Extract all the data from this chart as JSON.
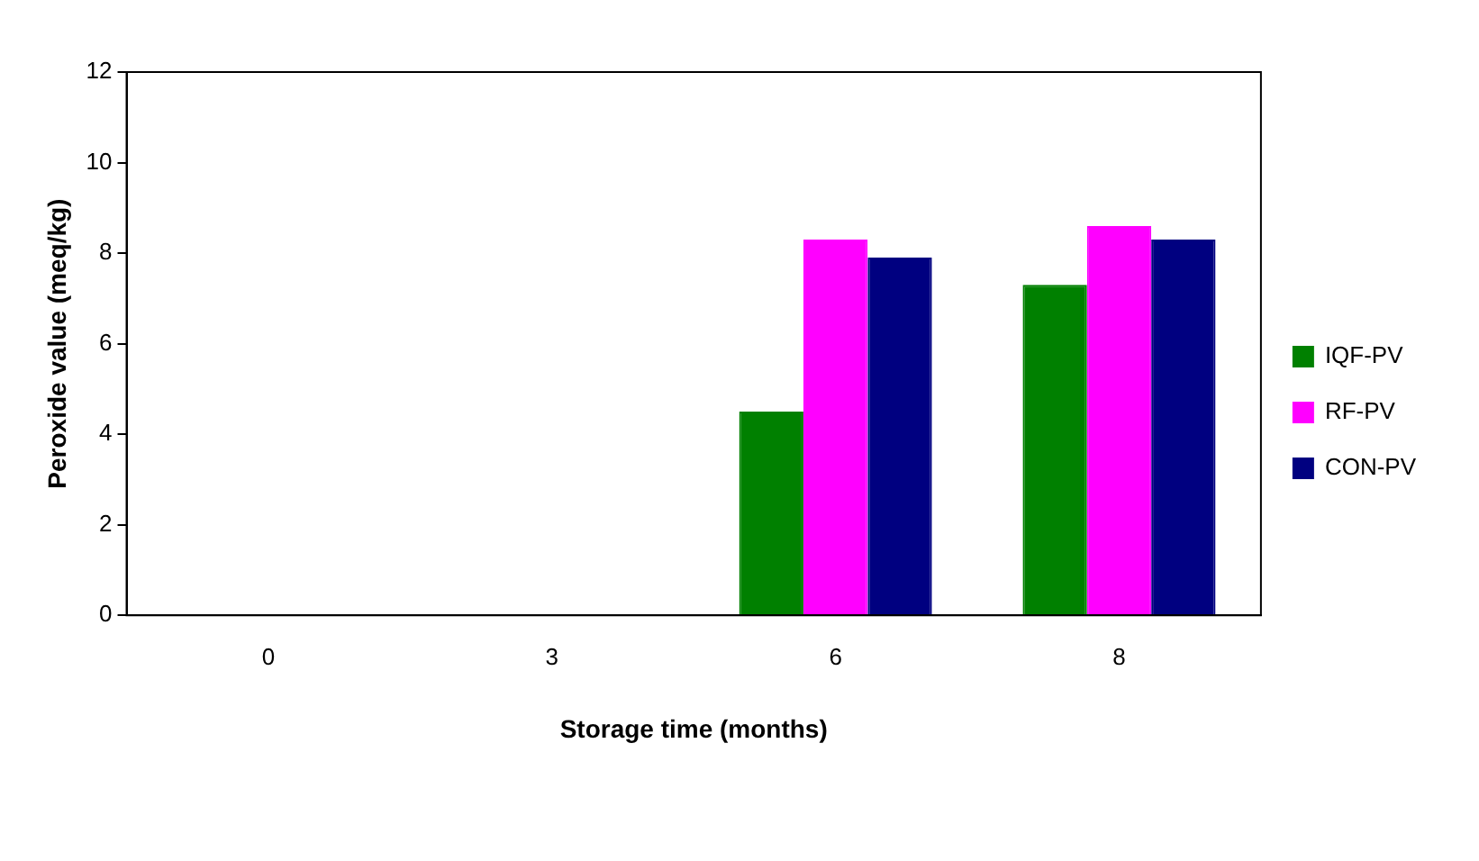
{
  "chart_data": {
    "type": "bar",
    "xlabel": "Storage time (months)",
    "ylabel": "Peroxide value (meq/kg)",
    "categories": [
      "0",
      "3",
      "6",
      "8"
    ],
    "series": [
      {
        "name": "IQF-PV",
        "color": "#008000",
        "values": [
          0,
          0,
          4.5,
          7.3
        ]
      },
      {
        "name": "RF-PV",
        "color": "#ff00ff",
        "values": [
          0,
          0,
          8.3,
          8.6
        ]
      },
      {
        "name": "CON-PV",
        "color": "#000080",
        "values": [
          0,
          0,
          7.9,
          8.3
        ]
      }
    ],
    "ylim": [
      0,
      12
    ],
    "yticks": [
      0,
      2,
      4,
      6,
      8,
      10,
      12
    ],
    "grid": false,
    "legend": "right"
  }
}
